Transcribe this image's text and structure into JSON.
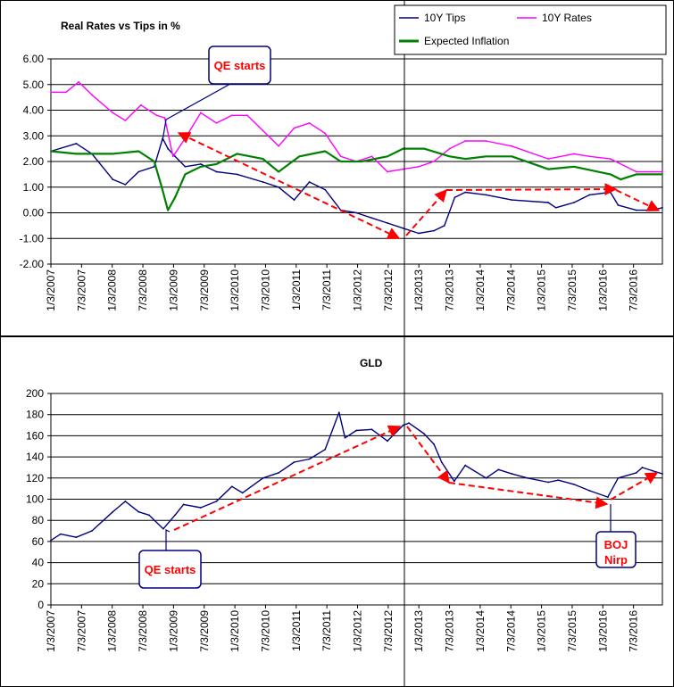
{
  "charts": [
    {
      "id": "real-rates",
      "title": "Real Rates vs Tips in %",
      "legend": {
        "placement": "top-right",
        "entries": [
          {
            "name": "10Y Tips",
            "color": "#000080"
          },
          {
            "name": "10Y Rates",
            "color": "#ff00ff"
          },
          {
            "name": "Expected Inflation",
            "color": "#008000"
          }
        ]
      },
      "y_ticks": [
        "6.00",
        "5.00",
        "4.00",
        "3.00",
        "2.00",
        "1.00",
        "0.00",
        "-1.00",
        "-2.00"
      ],
      "annotation": "QE starts"
    },
    {
      "id": "gld",
      "title": "GLD",
      "y_ticks": [
        "200",
        "180",
        "160",
        "140",
        "120",
        "100",
        "80",
        "60",
        "40",
        "20",
        "0"
      ],
      "annotations": [
        "QE starts",
        "BOJ Nirp"
      ]
    }
  ],
  "x_ticks": [
    "1/3/2007",
    "7/3/2007",
    "1/3/2008",
    "7/3/2008",
    "1/3/2009",
    "7/3/2009",
    "1/3/2010",
    "7/3/2010",
    "1/3/2011",
    "7/3/2011",
    "1/3/2012",
    "7/3/2012",
    "1/3/2013",
    "7/3/2013",
    "1/3/2014",
    "7/3/2014",
    "1/3/2015",
    "7/3/2015",
    "1/3/2016",
    "7/3/2016"
  ],
  "chart_data": [
    {
      "type": "line",
      "title": "Real Rates vs Tips in %",
      "xlabel": "",
      "ylabel": "",
      "ylim": [
        -2,
        6
      ],
      "xlim": [
        "2007-01-03",
        "2016-11-01"
      ],
      "grid": true,
      "legend_placement": "top-right",
      "series": [
        {
          "name": "10Y Tips",
          "color": "#000080",
          "x": [
            "2007-01-03",
            "2007-06-01",
            "2007-09-01",
            "2008-01-01",
            "2008-03-15",
            "2008-06-01",
            "2008-09-01",
            "2008-10-20",
            "2008-11-20",
            "2009-01-01",
            "2009-03-01",
            "2009-06-01",
            "2009-09-01",
            "2010-01-01",
            "2010-06-01",
            "2010-09-01",
            "2010-12-01",
            "2011-03-01",
            "2011-06-01",
            "2011-09-01",
            "2011-12-01",
            "2012-03-01",
            "2012-06-01",
            "2012-09-01",
            "2012-12-01",
            "2013-03-01",
            "2013-05-01",
            "2013-07-01",
            "2013-09-01",
            "2014-01-01",
            "2014-06-01",
            "2015-01-01",
            "2015-02-15",
            "2015-06-01",
            "2015-09-01",
            "2016-01-01",
            "2016-02-15",
            "2016-06-01",
            "2016-09-01",
            "2016-11-01"
          ],
          "values": [
            2.4,
            2.7,
            2.3,
            1.3,
            1.1,
            1.6,
            1.8,
            2.9,
            2.5,
            2.2,
            1.8,
            1.9,
            1.6,
            1.5,
            1.2,
            1.0,
            0.5,
            1.2,
            0.9,
            0.1,
            0.0,
            -0.2,
            -0.4,
            -0.6,
            -0.8,
            -0.7,
            -0.5,
            0.6,
            0.8,
            0.7,
            0.5,
            0.4,
            0.2,
            0.4,
            0.7,
            0.8,
            0.3,
            0.1,
            0.1,
            0.2
          ]
        },
        {
          "name": "10Y Rates",
          "color": "#ff00ff",
          "x": [
            "2007-01-03",
            "2007-04-01",
            "2007-06-15",
            "2007-09-01",
            "2008-01-01",
            "2008-03-15",
            "2008-06-15",
            "2008-09-15",
            "2008-11-01",
            "2008-12-20",
            "2009-03-01",
            "2009-06-01",
            "2009-09-01",
            "2009-12-01",
            "2010-03-01",
            "2010-06-01",
            "2010-09-01",
            "2010-12-01",
            "2011-03-01",
            "2011-06-01",
            "2011-09-01",
            "2011-12-01",
            "2012-03-01",
            "2012-06-01",
            "2012-09-01",
            "2012-12-01",
            "2013-03-01",
            "2013-06-01",
            "2013-09-01",
            "2014-01-01",
            "2014-06-01",
            "2015-01-01",
            "2015-06-01",
            "2015-09-01",
            "2016-01-01",
            "2016-06-01",
            "2016-09-01",
            "2016-11-01"
          ],
          "values": [
            4.7,
            4.7,
            5.1,
            4.6,
            3.9,
            3.6,
            4.2,
            3.8,
            3.7,
            2.2,
            2.9,
            3.9,
            3.5,
            3.8,
            3.8,
            3.2,
            2.6,
            3.3,
            3.5,
            3.1,
            2.2,
            2.0,
            2.2,
            1.6,
            1.7,
            1.8,
            2.0,
            2.5,
            2.8,
            2.8,
            2.6,
            2.1,
            2.3,
            2.2,
            2.1,
            1.6,
            1.6,
            1.6
          ]
        },
        {
          "name": "Expected Inflation",
          "color": "#008000",
          "x": [
            "2007-01-03",
            "2007-06-01",
            "2008-01-01",
            "2008-06-01",
            "2008-09-01",
            "2008-10-15",
            "2008-11-20",
            "2009-01-01",
            "2009-03-01",
            "2009-06-01",
            "2009-09-01",
            "2010-01-01",
            "2010-06-01",
            "2010-09-01",
            "2011-01-01",
            "2011-06-01",
            "2011-09-01",
            "2012-01-01",
            "2012-06-01",
            "2012-09-01",
            "2013-01-01",
            "2013-06-01",
            "2013-09-01",
            "2014-01-01",
            "2014-06-01",
            "2015-01-01",
            "2015-06-01",
            "2016-01-01",
            "2016-03-01",
            "2016-06-01",
            "2016-11-01"
          ],
          "values": [
            2.4,
            2.3,
            2.3,
            2.4,
            2.0,
            1.0,
            0.1,
            0.6,
            1.5,
            1.8,
            1.9,
            2.3,
            2.1,
            1.6,
            2.2,
            2.4,
            2.0,
            2.0,
            2.2,
            2.5,
            2.5,
            2.2,
            2.1,
            2.2,
            2.2,
            1.7,
            1.8,
            1.5,
            1.3,
            1.5,
            1.5
          ]
        }
      ]
    },
    {
      "type": "line",
      "title": "GLD",
      "xlabel": "",
      "ylabel": "",
      "ylim": [
        0,
        200
      ],
      "xlim": [
        "2007-01-03",
        "2016-11-01"
      ],
      "grid": true,
      "series": [
        {
          "name": "",
          "color": "#000080",
          "x": [
            "2007-01-03",
            "2007-03-01",
            "2007-06-01",
            "2007-09-01",
            "2008-01-01",
            "2008-03-15",
            "2008-06-01",
            "2008-08-01",
            "2008-10-24",
            "2009-01-01",
            "2009-02-20",
            "2009-06-01",
            "2009-09-01",
            "2009-12-01",
            "2010-02-01",
            "2010-06-01",
            "2010-09-01",
            "2010-12-01",
            "2011-03-01",
            "2011-06-01",
            "2011-08-22",
            "2011-09-26",
            "2011-12-01",
            "2012-03-01",
            "2012-06-01",
            "2012-09-01",
            "2012-10-05",
            "2013-01-01",
            "2013-03-01",
            "2013-04-15",
            "2013-06-28",
            "2013-09-01",
            "2014-01-01",
            "2014-03-15",
            "2014-06-01",
            "2014-09-01",
            "2015-01-01",
            "2015-03-01",
            "2015-06-01",
            "2015-09-01",
            "2015-12-17",
            "2016-02-15",
            "2016-06-01",
            "2016-07-06",
            "2016-09-01",
            "2016-11-01"
          ],
          "values": [
            61,
            67,
            64,
            70,
            88,
            98,
            88,
            85,
            72,
            85,
            95,
            92,
            98,
            112,
            106,
            120,
            125,
            135,
            138,
            147,
            182,
            158,
            165,
            166,
            155,
            170,
            172,
            162,
            152,
            135,
            117,
            132,
            120,
            128,
            124,
            120,
            116,
            118,
            114,
            108,
            102,
            120,
            125,
            130,
            127,
            124
          ]
        }
      ]
    }
  ]
}
